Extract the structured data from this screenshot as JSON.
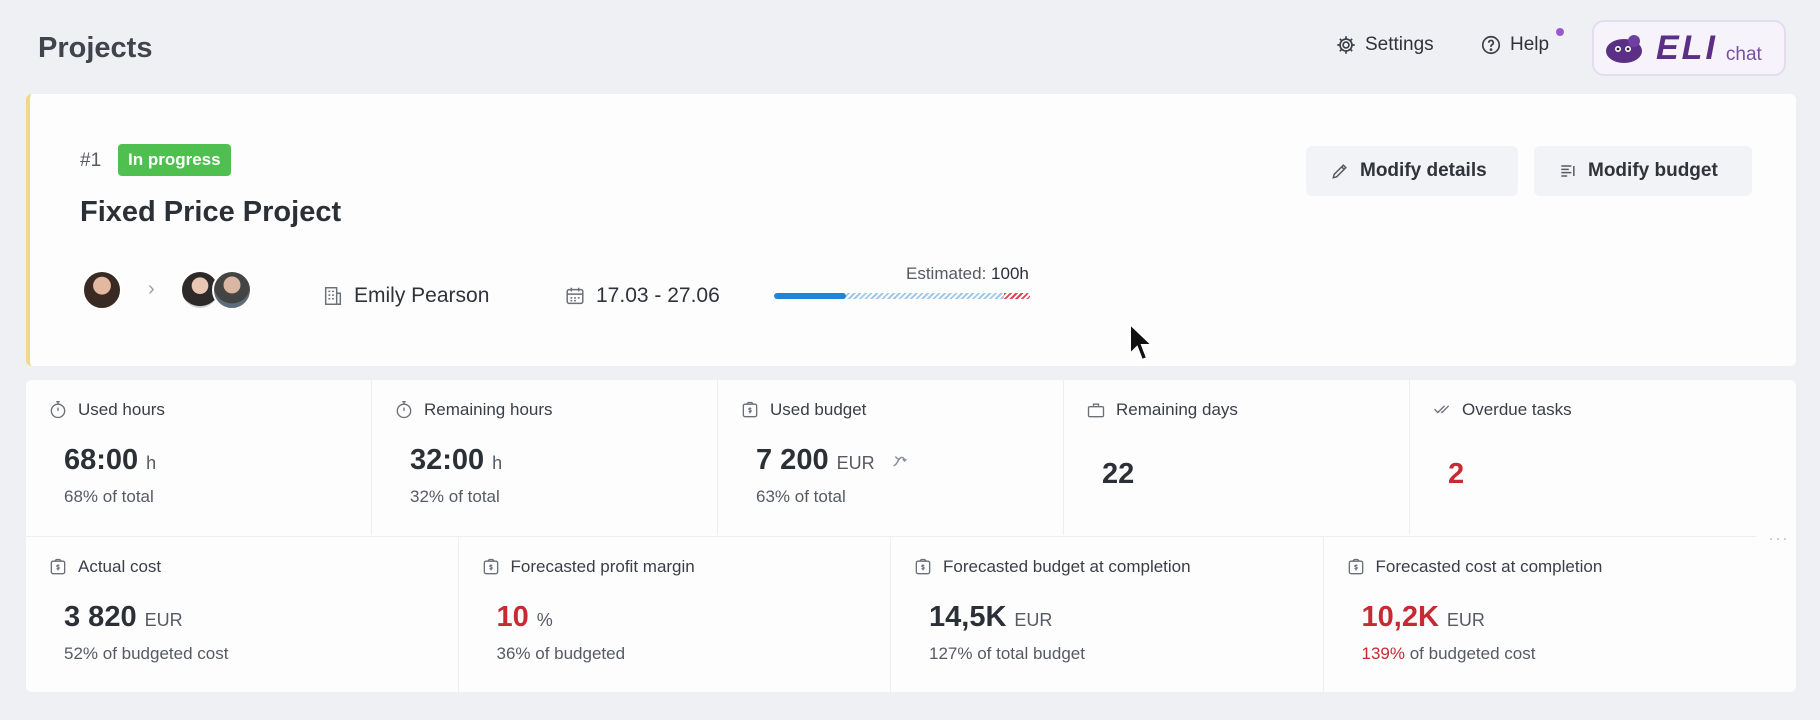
{
  "header": {
    "title": "Projects",
    "settings_label": "Settings",
    "help_label": "Help",
    "eli_word": "ELI",
    "eli_chat": "chat"
  },
  "project": {
    "number": "#1",
    "status": "In progress",
    "title": "Fixed Price Project",
    "owner": "Emily Pearson",
    "dates": "17.03 - 27.06",
    "estimated_label": "Estimated:",
    "estimated_value": "100h",
    "used_fraction": 0.28,
    "over_fraction": 0.1,
    "buttons": {
      "modify_details": "Modify details",
      "modify_budget": "Modify budget"
    }
  },
  "metrics_row1": [
    {
      "label": "Used hours",
      "value": "68:00",
      "unit": "h",
      "sub": "68% of total"
    },
    {
      "label": "Remaining hours",
      "value": "32:00",
      "unit": "h",
      "sub": "32% of total"
    },
    {
      "label": "Used budget",
      "value": "7 200",
      "unit": "EUR",
      "sub": "63% of total"
    },
    {
      "label": "Remaining days",
      "value": "22"
    },
    {
      "label": "Overdue tasks",
      "value": "2"
    }
  ],
  "metrics_row2": [
    {
      "label": "Actual cost",
      "value": "3 820",
      "unit": "EUR",
      "sub": "52% of budgeted cost"
    },
    {
      "label": "Forecasted profit margin",
      "value": "10",
      "unit": "%",
      "sub": "36% of budgeted"
    },
    {
      "label": "Forecasted budget at completion",
      "value": "14,5K",
      "unit": "EUR",
      "sub": "127% of total budget"
    },
    {
      "label": "Forecasted cost at completion",
      "value": "10,2K",
      "unit": "EUR",
      "sub_highlight": "139%",
      "sub_rest": "of budgeted cost"
    }
  ],
  "colors": {
    "accent": "#1e86d6",
    "status": "#4fbf4f",
    "danger": "#c62b34",
    "brand": "#5b2f86"
  }
}
